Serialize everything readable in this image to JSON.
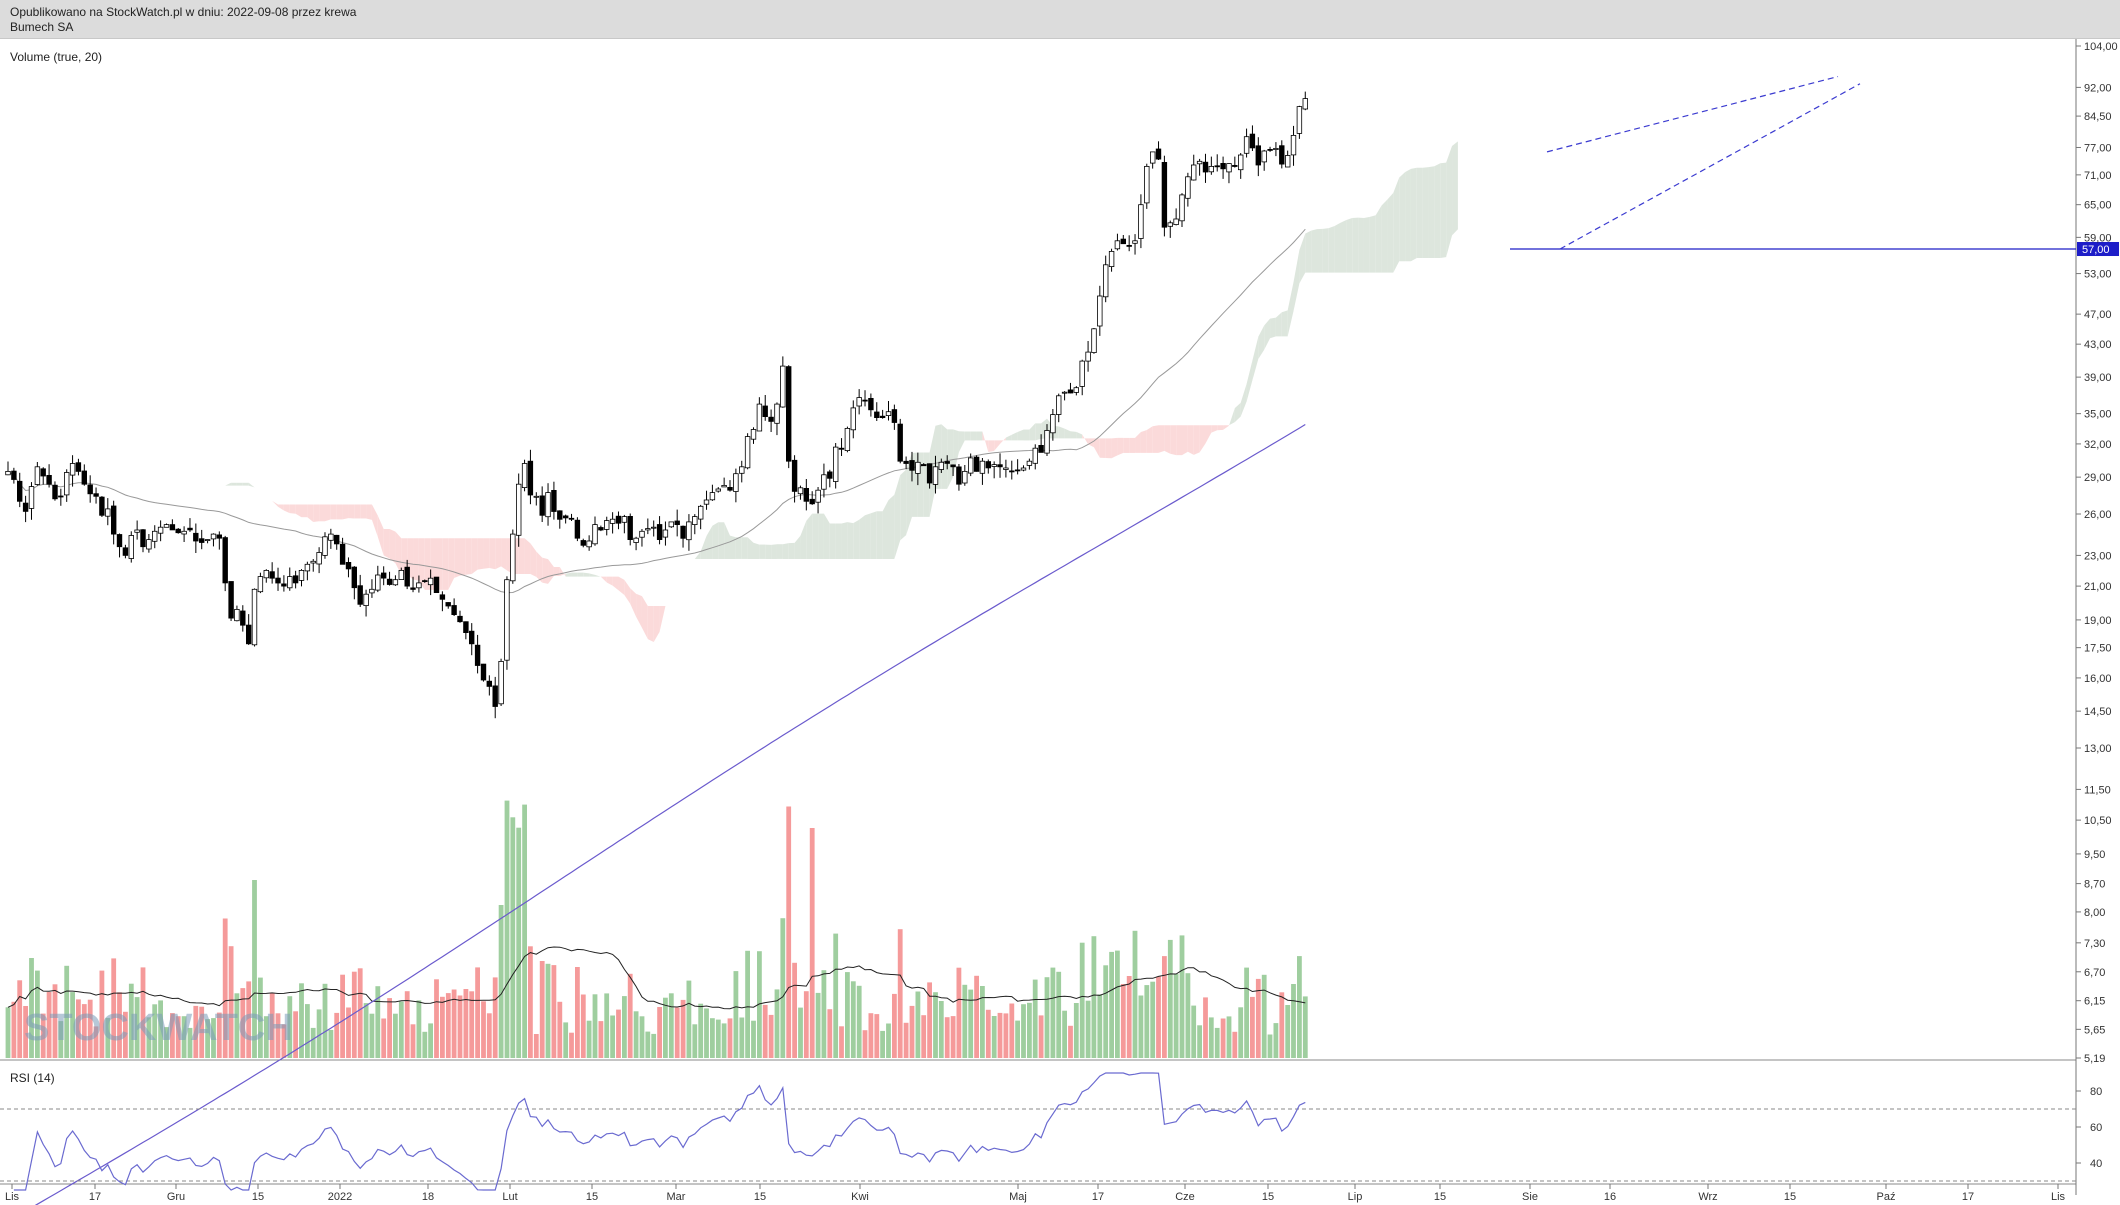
{
  "header": {
    "published": "Opublikowano na StockWatch.pl w dniu: 2022-09-08 przez krewa",
    "instrument": "Bumech SA"
  },
  "watermark": "STOCKWATCH",
  "colors": {
    "up": "#ffffff",
    "down": "#000000",
    "vol_up": "#9fce9f",
    "vol_down": "#f59a9a",
    "cloud_bull": "#dde6dd",
    "cloud_bear": "#fbdada",
    "ma_long": "#6a5acd",
    "ma_short": "#999999",
    "rsi": "#6a6ad0",
    "hline": "#1d1dc8",
    "trend": "#3b3bd0"
  },
  "chart_data": {
    "type": "candlestick",
    "scale": "log",
    "volume_label": "Volume (true, 20)",
    "rsi_label": "RSI (14)",
    "price_ticks": [
      "104,00",
      "92,00",
      "84,50",
      "77,00",
      "71,00",
      "65,00",
      "59,00",
      "53,00",
      "47,00",
      "43,00",
      "39,00",
      "35,00",
      "32,00",
      "29,00",
      "26,00",
      "23,00",
      "21,00",
      "19,00",
      "17,50",
      "16,00",
      "14,50",
      "13,00",
      "11,50",
      "10,50",
      "9,50",
      "8,70",
      "8,00",
      "7,30",
      "6,70",
      "6,15",
      "5,65",
      "5,19"
    ],
    "rsi_ticks": [
      "80",
      "60",
      "40"
    ],
    "x_labels": [
      "Lis",
      "17",
      "Gru",
      "15",
      "2022",
      "18",
      "Lut",
      "15",
      "Mar",
      "15",
      "Kwi",
      "Maj",
      "17",
      "Cze",
      "15",
      "Lip",
      "15",
      "Sie",
      "16",
      "Wrz",
      "15",
      "Paź",
      "17",
      "Lis"
    ],
    "hline_value": 57.0,
    "hline_label": "57,00",
    "close_series": [
      29.5,
      28.8,
      27.0,
      26.2,
      28.2,
      29.9,
      29.1,
      28.4,
      27.2,
      27.4,
      29.4,
      30.2,
      29.5,
      28.4,
      27.6,
      27.4,
      25.9,
      26.4,
      24.5,
      23.6,
      23.0,
      24.4,
      24.8,
      23.6,
      24.1,
      24.7,
      25.0,
      25.2,
      24.8,
      24.6,
      24.7,
      24.8,
      24.0,
      23.9,
      24.1,
      24.5,
      24.2,
      21.2,
      19.1,
      19.6,
      18.7,
      17.7,
      20.8,
      21.6,
      22.0,
      21.5,
      21.2,
      21.0,
      21.6,
      21.2,
      22.0,
      22.4,
      22.6,
      23.2,
      24.3,
      24.5,
      23.8,
      22.4,
      22.1,
      20.9,
      19.9,
      20.5,
      20.8,
      21.7,
      21.5,
      21.1,
      21.4,
      22.0,
      21.0,
      20.8,
      21.2,
      21.3,
      21.5,
      20.6,
      20.2,
      19.8,
      19.3,
      18.9,
      18.3,
      17.7,
      16.6,
      15.9,
      15.6,
      14.7,
      16.8,
      21.4,
      24.5,
      28.4,
      30.2,
      27.5,
      27.4,
      25.9,
      27.7,
      26.2,
      25.6,
      25.7,
      25.6,
      24.2,
      23.7,
      24.0,
      25.2,
      24.8,
      25.5,
      25.6,
      25.3,
      25.8,
      24.1,
      24.2,
      24.7,
      24.9,
      25.0,
      24.1,
      24.8,
      25.4,
      25.2,
      24.2,
      25.4,
      25.8,
      26.6,
      27.1,
      27.7,
      28.0,
      28.3,
      27.9,
      29.3,
      29.9,
      32.7,
      33.4,
      36.0,
      34.7,
      34.2,
      36.0,
      40.3,
      30.4,
      27.8,
      28.1,
      27.0,
      26.8,
      27.9,
      29.2,
      28.9,
      31.7,
      31.5,
      33.5,
      35.6,
      36.7,
      36.4,
      35.4,
      34.6,
      34.6,
      35.2,
      34.1,
      30.4,
      30.2,
      29.6,
      30.3,
      30.0,
      28.5,
      29.9,
      30.3,
      30.2,
      29.9,
      28.4,
      29.5,
      30.7,
      29.5,
      30.4,
      29.8,
      30.1,
      29.9,
      29.8,
      29.5,
      29.6,
      29.8,
      30.4,
      31.6,
      31.2,
      33.3,
      34.9,
      36.9,
      37.3,
      37.2,
      37.8,
      40.9,
      42.0,
      45.0,
      49.6,
      54.4,
      56.6,
      58.4,
      57.9,
      57.6,
      58.4,
      65.0,
      72.8,
      76.0,
      74.4,
      60.8,
      61.6,
      62.3,
      66.9,
      70.6,
      73.1,
      73.9,
      71.6,
      72.8,
      72.8,
      72.3,
      73.4,
      72.8,
      75.3,
      79.5,
      76.9,
      73.1,
      76.2,
      76.4,
      76.8,
      73.3,
      75.2,
      79.8,
      86.9,
      89.0
    ]
  }
}
